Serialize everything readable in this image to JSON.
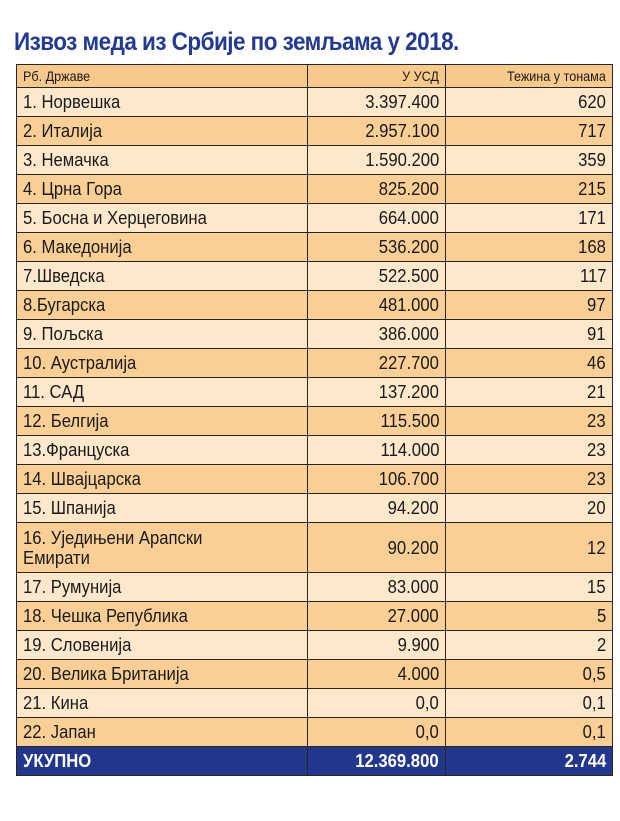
{
  "title": "Извоз меда из Србије по земљама у 2018.",
  "colors": {
    "title": "#233a92",
    "header_bg": "#f7c98a",
    "row_light": "#fde8cb",
    "row_dark": "#f9cf96",
    "total_bg": "#22368e"
  },
  "table": {
    "headers": [
      "Рб. Државе",
      "У УСД",
      "Тежина у тонама"
    ],
    "rows": [
      [
        "1. Норвешка",
        "3.397.400",
        "620"
      ],
      [
        "2. Италија",
        "2.957.100",
        "717"
      ],
      [
        "3. Немачка",
        "1.590.200",
        "359"
      ],
      [
        "4. Црна Гора",
        "825.200",
        "215"
      ],
      [
        "5. Босна и Херцеговина",
        "664.000",
        "171"
      ],
      [
        "6. Македонија",
        "536.200",
        "168"
      ],
      [
        "7.Шведска",
        "522.500",
        "117"
      ],
      [
        "8.Бугарска",
        "481.000",
        "97"
      ],
      [
        "9. Пољска",
        "386.000",
        "91"
      ],
      [
        "10. Аустралија",
        "227.700",
        "46"
      ],
      [
        "11. САД",
        "137.200",
        "21"
      ],
      [
        "12. Белгија",
        "115.500",
        "23"
      ],
      [
        "13.Француска",
        "114.000",
        "23"
      ],
      [
        "14. Швајцарска",
        "106.700",
        "23"
      ],
      [
        "15. Шпанија",
        "94.200",
        "20"
      ],
      [
        "16. Уједињени Арапски Емирати",
        "90.200",
        "12"
      ],
      [
        "17. Румунија",
        "83.000",
        "15"
      ],
      [
        "18. Чешка Република",
        "27.000",
        "5"
      ],
      [
        "19. Словенија",
        "9.900",
        "2"
      ],
      [
        "20. Велика Британија",
        "4.000",
        "0,5"
      ],
      [
        "21. Кина",
        "0,0",
        "0,1"
      ],
      [
        "22. Јапан",
        "0,0",
        "0,1"
      ]
    ],
    "total": [
      "УКУПНО",
      "12.369.800",
      "2.744"
    ]
  }
}
